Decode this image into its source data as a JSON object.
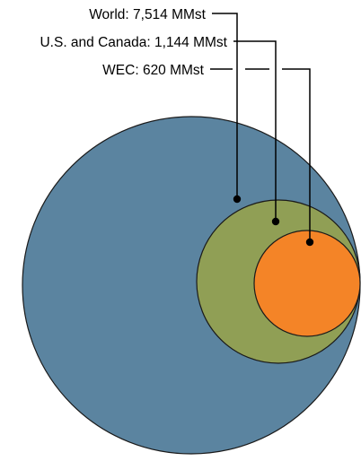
{
  "diagram": {
    "labels": [
      {
        "id": "world",
        "text": "World: 7,514 MMst"
      },
      {
        "id": "us-canada",
        "text": "U.S. and Canada: 1,144 MMst"
      },
      {
        "id": "wec",
        "text": "WEC: 620 MMst"
      }
    ],
    "regions": [
      {
        "id": "world",
        "value_mmst": 7514,
        "color": "#5b84a0"
      },
      {
        "id": "us-canada",
        "value_mmst": 1144,
        "color": "#909f55"
      },
      {
        "id": "wec",
        "value_mmst": 620,
        "color": "#f48427"
      }
    ],
    "colors": {
      "outline": "#1a1a1a",
      "leader_line": "#000000",
      "marker_dot": "#000000",
      "text": "#000000"
    }
  }
}
